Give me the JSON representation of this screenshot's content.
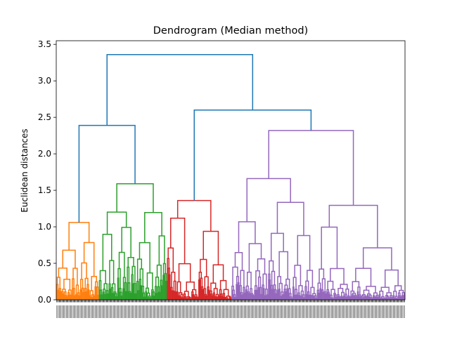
{
  "chart_data": {
    "type": "dendrogram",
    "title": "Dendrogram (Median method)",
    "xlabel": "",
    "ylabel": "Euclidean distances",
    "ylim": [
      0,
      3.55
    ],
    "yticks": [
      0.0,
      0.5,
      1.0,
      1.5,
      2.0,
      2.5,
      3.0,
      3.5
    ],
    "ytick_labels": [
      "0.0",
      "0.5",
      "1.0",
      "1.5",
      "2.0",
      "2.5",
      "3.0",
      "3.5"
    ],
    "leaf_count": 400,
    "colors": {
      "above_threshold": "#1f77b4",
      "orange": "#ff7f0e",
      "green": "#2ca02c",
      "red": "#d62728",
      "purple": "#9467bd"
    },
    "clusters": [
      {
        "color": "orange",
        "leaf_start": 0,
        "leaf_end": 48,
        "root_height": 1.06
      },
      {
        "color": "green",
        "leaf_start": 49,
        "leaf_end": 126,
        "root_height": 1.59
      },
      {
        "color": "red",
        "leaf_start": 127,
        "leaf_end": 200,
        "root_height": 1.36
      },
      {
        "color": "purple",
        "leaf_start": 201,
        "leaf_end": 399,
        "root_height": 2.32
      }
    ],
    "upper_merges": [
      {
        "height": 2.39,
        "joins": [
          "orange",
          "green"
        ]
      },
      {
        "height": 2.6,
        "joins": [
          "red",
          "purple"
        ]
      },
      {
        "height": 3.36,
        "joins": [
          "orange+green",
          "red+purple"
        ]
      }
    ]
  }
}
